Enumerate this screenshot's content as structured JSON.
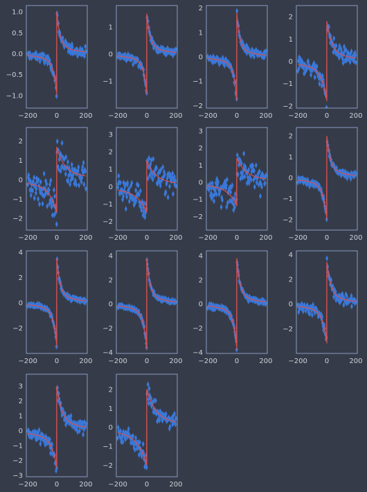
{
  "style": {
    "background": "#353b48",
    "axes_frame": "#8a9ec4",
    "tick_label_color": "#ced2da",
    "data_color": "#3a78d8",
    "fit_color": "#d85050",
    "marker": "thin-diamond"
  },
  "chart_data": [
    {
      "type": "scatter",
      "subplot": 1,
      "xlim": [
        -210,
        210
      ],
      "ylim": [
        -1.3,
        1.15
      ],
      "xticks": [
        -200,
        0,
        200
      ],
      "yticks": [
        -1.0,
        -0.5,
        0.0,
        0.5,
        1.0
      ],
      "ytick_labels": [
        "−1.0",
        "−0.5",
        "0.0",
        "0.5",
        "1.0"
      ],
      "peak": 1.0,
      "trough": -1.0,
      "width": 22,
      "noise": 0.1,
      "offset": 0.0,
      "grid": false
    },
    {
      "type": "scatter",
      "subplot": 2,
      "xlim": [
        -210,
        210
      ],
      "ylim": [
        -2.0,
        1.8
      ],
      "xticks": [
        -200,
        0,
        200
      ],
      "yticks": [
        -1,
        0,
        1
      ],
      "ytick_labels": [
        "−1",
        "0",
        "1"
      ],
      "peak": 1.5,
      "trough": -1.5,
      "width": 22,
      "noise": 0.12,
      "offset": 0.0,
      "grid": false
    },
    {
      "type": "scatter",
      "subplot": 3,
      "xlim": [
        -210,
        210
      ],
      "ylim": [
        -2.1,
        2.1
      ],
      "xticks": [
        -200,
        0,
        200
      ],
      "yticks": [
        -2,
        -1,
        0,
        1,
        2
      ],
      "ytick_labels": [
        "−2",
        "−1",
        "0",
        "1",
        "2"
      ],
      "peak": 1.8,
      "trough": -1.8,
      "width": 20,
      "noise": 0.15,
      "offset": 0.0,
      "grid": false
    },
    {
      "type": "scatter",
      "subplot": 4,
      "xlim": [
        -210,
        210
      ],
      "ylim": [
        -2.1,
        2.5
      ],
      "xticks": [
        -200,
        0,
        200
      ],
      "yticks": [
        -2,
        -1,
        0,
        1,
        2
      ],
      "ytick_labels": [
        "−2",
        "−1",
        "0",
        "1",
        "2"
      ],
      "peak": 1.8,
      "trough": -1.8,
      "width": 35,
      "noise": 0.3,
      "offset": 0.0,
      "grid": false
    },
    {
      "type": "scatter",
      "subplot": 5,
      "xlim": [
        -210,
        210
      ],
      "ylim": [
        -2.6,
        2.7
      ],
      "xticks": [
        -200,
        0,
        200
      ],
      "yticks": [
        -2,
        -1,
        0,
        1,
        2
      ],
      "ytick_labels": [
        "−2",
        "−1",
        "0",
        "1",
        "2"
      ],
      "peak": 1.7,
      "trough": -1.7,
      "width": 50,
      "noise": 0.6,
      "offset": 0.0,
      "grid": false
    },
    {
      "type": "scatter",
      "subplot": 6,
      "xlim": [
        -210,
        210
      ],
      "ylim": [
        -2.5,
        3.4
      ],
      "xticks": [
        -200,
        0,
        200
      ],
      "yticks": [
        -2,
        -1,
        0,
        1,
        2,
        3
      ],
      "ytick_labels": [
        "−2",
        "−1",
        "0",
        "1",
        "2",
        "3"
      ],
      "peak": 1.5,
      "trough": -1.5,
      "width": 60,
      "noise": 0.7,
      "offset": 0.0,
      "grid": false
    },
    {
      "type": "scatter",
      "subplot": 7,
      "xlim": [
        -210,
        210
      ],
      "ylim": [
        -2.8,
        3.2
      ],
      "xticks": [
        -200,
        0,
        200
      ],
      "yticks": [
        -2,
        -1,
        0,
        1,
        2,
        3
      ],
      "ytick_labels": [
        "−2",
        "−1",
        "0",
        "1",
        "2",
        "3"
      ],
      "peak": 1.4,
      "trough": -1.4,
      "width": 60,
      "noise": 0.7,
      "offset": 0.0,
      "grid": false
    },
    {
      "type": "scatter",
      "subplot": 8,
      "xlim": [
        -210,
        210
      ],
      "ylim": [
        -2.5,
        2.4
      ],
      "xticks": [
        -200,
        0,
        200
      ],
      "yticks": [
        -2,
        -1,
        0,
        1,
        2
      ],
      "ytick_labels": [
        "−2",
        "−1",
        "0",
        "1",
        "2"
      ],
      "peak": 2.0,
      "trough": -2.0,
      "width": 25,
      "noise": 0.12,
      "offset": 0.0,
      "grid": false
    },
    {
      "type": "scatter",
      "subplot": 9,
      "xlim": [
        -210,
        210
      ],
      "ylim": [
        -4.0,
        4.1
      ],
      "xticks": [
        -200,
        0,
        200
      ],
      "yticks": [
        -2,
        0,
        2,
        4
      ],
      "ytick_labels": [
        "−2",
        "0",
        "2",
        "4"
      ],
      "peak": 3.5,
      "trough": -3.5,
      "width": 22,
      "noise": 0.15,
      "offset": 0.0,
      "grid": false
    },
    {
      "type": "scatter",
      "subplot": 10,
      "xlim": [
        -210,
        210
      ],
      "ylim": [
        -4.1,
        4.4
      ],
      "xticks": [
        -200,
        0,
        200
      ],
      "yticks": [
        -4,
        -2,
        0,
        2,
        4
      ],
      "ytick_labels": [
        "−4",
        "−2",
        "0",
        "2",
        "4"
      ],
      "peak": 3.8,
      "trough": -3.8,
      "width": 22,
      "noise": 0.15,
      "offset": 0.0,
      "grid": false
    },
    {
      "type": "scatter",
      "subplot": 11,
      "xlim": [
        -210,
        210
      ],
      "ylim": [
        -4.1,
        4.4
      ],
      "xticks": [
        -200,
        0,
        200
      ],
      "yticks": [
        -4,
        -2,
        0,
        2,
        4
      ],
      "ytick_labels": [
        "−4",
        "−2",
        "0",
        "2",
        "4"
      ],
      "peak": 3.8,
      "trough": -3.8,
      "width": 22,
      "noise": 0.18,
      "offset": 0.0,
      "grid": false
    },
    {
      "type": "scatter",
      "subplot": 12,
      "xlim": [
        -210,
        210
      ],
      "ylim": [
        -4.0,
        4.3
      ],
      "xticks": [
        -200,
        0,
        200
      ],
      "yticks": [
        -2,
        0,
        2,
        4
      ],
      "ytick_labels": [
        "−2",
        "0",
        "2",
        "4"
      ],
      "peak": 3.4,
      "trough": -3.2,
      "width": 28,
      "noise": 0.35,
      "offset": 0.0,
      "grid": false
    },
    {
      "type": "scatter",
      "subplot": 13,
      "xlim": [
        -210,
        210
      ],
      "ylim": [
        -3.1,
        3.8
      ],
      "xticks": [
        -200,
        0,
        200
      ],
      "yticks": [
        -3,
        -2,
        -1,
        0,
        1,
        2,
        3
      ],
      "ytick_labels": [
        "−3",
        "−2",
        "−1",
        "0",
        "1",
        "2",
        "3"
      ],
      "peak": 3.0,
      "trough": -2.5,
      "width": 35,
      "noise": 0.35,
      "offset": 0.0,
      "grid": false
    },
    {
      "type": "scatter",
      "subplot": 14,
      "xlim": [
        -210,
        210
      ],
      "ylim": [
        -2.6,
        2.8
      ],
      "xticks": [
        -200,
        0,
        200
      ],
      "yticks": [
        -2,
        -1,
        0,
        1,
        2
      ],
      "ytick_labels": [
        "−2",
        "−1",
        "0",
        "1",
        "2"
      ],
      "peak": 2.0,
      "trough": -2.0,
      "width": 60,
      "noise": 0.35,
      "offset": 0.0,
      "grid": false
    }
  ]
}
